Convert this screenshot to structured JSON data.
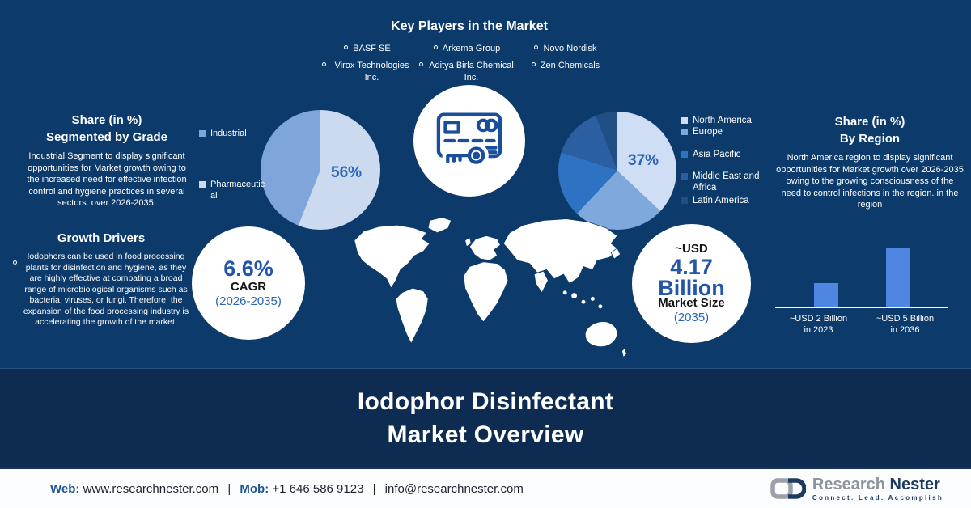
{
  "colors": {
    "background": "#0b3a6b",
    "banner": "#0e2c52",
    "accent_blue": "#2b66b4",
    "icon_stroke": "#1a4e9b",
    "bar_blue": "#4f86e2"
  },
  "key_players": {
    "title": "Key Players in the Market",
    "items": [
      "BASF SE",
      "Arkema Group",
      "Novo Nordisk",
      "Virox Technologies Inc.",
      "Aditya Birla Chemical Inc.",
      "Zen Chemicals"
    ]
  },
  "grade_section": {
    "title_line1": "Share (in %)",
    "title_line2": "Segmented by Grade",
    "body": "Industrial Segment to display significant opportunities for Market growth owing to the increased need for effective infection control and hygiene practices in several sectors. over 2026-2035."
  },
  "growth_drivers": {
    "title": "Growth Drivers",
    "body": "Iodophors can be used in food processing plants for disinfection and hygiene, as they are highly effective at combating a broad range of microbiological organisms such as bacteria, viruses, or fungi. Therefore, the expansion of the food processing industry is accelerating the growth of the market."
  },
  "region_section": {
    "title_line1": "Share (in %)",
    "title_line2": "By Region",
    "body": "North America region to display significant opportunities for Market growth over 2026-2035 owing to the growing consciousness of the need to control infections in the region.  in the region"
  },
  "cagr_badge": {
    "value": "6.6%",
    "label": "CAGR",
    "period": "(2026-2035)"
  },
  "market_size_badge": {
    "prefix": "~USD",
    "value": "4.17",
    "unit": "Billion",
    "label": "Market Size",
    "year": "(2035)"
  },
  "banner": {
    "title_line1": "Iodophor Disinfectant",
    "title_line2": "Market Overview"
  },
  "footer": {
    "web_label": "Web:",
    "web": "www.researchnester.com",
    "separator": "|",
    "mob_label": "Mob:",
    "mob": "+1 646 586 9123",
    "email": "info@researchnester.com",
    "logo_name_1": "Research",
    "logo_name_2": "Nester",
    "tagline": "Connect. Lead. Accomplish"
  },
  "chart_data": [
    {
      "type": "pie",
      "title": "Share (in %) Segmented by Grade",
      "labels": [
        "Pharmaceutical",
        "Industrial"
      ],
      "values": [
        56,
        44
      ],
      "colors": [
        "#ccdaf0",
        "#7fa6da"
      ],
      "callout": "56%",
      "legend_position": "left",
      "note": "56% slice labeled; other value estimated"
    },
    {
      "type": "pie",
      "title": "Share (in %) By Region",
      "labels": [
        "North America",
        "Europe",
        "Asia Pacific",
        "Middle East and Africa",
        "Latin America"
      ],
      "values": [
        37,
        25,
        18,
        14,
        6
      ],
      "colors": [
        "#cfdef4",
        "#7fa8dd",
        "#2e72c4",
        "#2c5fa2",
        "#204f86"
      ],
      "callout": "37%",
      "legend_position": "right",
      "note": "37% slice labeled; other values estimated"
    },
    {
      "type": "bar",
      "title": "Market Size Growth",
      "categories": [
        "in 2023",
        "in 2036"
      ],
      "values": [
        2,
        5
      ],
      "bar_labels": [
        "~USD 2 Billion",
        "~USD 5 Billion"
      ],
      "color": "#4f86e2",
      "unit": "USD Billion",
      "ylim": [
        0,
        5
      ]
    }
  ]
}
